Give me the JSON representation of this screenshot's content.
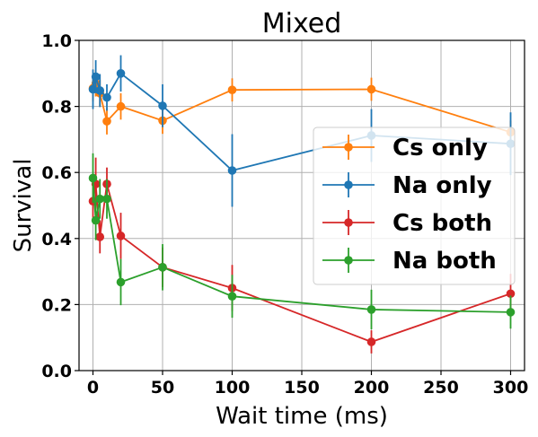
{
  "chart_data": {
    "type": "line",
    "title": "Mixed",
    "xlabel": "Wait time (ms)",
    "ylabel": "Survival",
    "xlim": [
      -10,
      310
    ],
    "ylim": [
      0.0,
      1.0
    ],
    "xticks": [
      0,
      50,
      100,
      150,
      200,
      250,
      300
    ],
    "xtick_labels": [
      "0",
      "50",
      "100",
      "150",
      "200",
      "250",
      "300"
    ],
    "yticks": [
      0.0,
      0.2,
      0.4,
      0.6,
      0.8,
      1.0
    ],
    "ytick_labels": [
      "0.0",
      "0.2",
      "0.4",
      "0.6",
      "0.8",
      "1.0"
    ],
    "grid": true,
    "legend_position": "right",
    "series": [
      {
        "name": "Cs only",
        "color": "#ff7f0e",
        "x": [
          0,
          2,
          5,
          10,
          20,
          50,
          100,
          200,
          300
        ],
        "y": [
          0.855,
          0.87,
          0.84,
          0.755,
          0.8,
          0.757,
          0.85,
          0.852,
          0.722
        ],
        "err": [
          0.04,
          0.04,
          0.04,
          0.04,
          0.04,
          0.04,
          0.035,
          0.035,
          0.035
        ]
      },
      {
        "name": "Na only",
        "color": "#1f77b4",
        "x": [
          0,
          2,
          5,
          10,
          20,
          50,
          100,
          200,
          300
        ],
        "y": [
          0.852,
          0.89,
          0.848,
          0.827,
          0.9,
          0.802,
          0.606,
          0.712,
          0.687
        ],
        "err": [
          0.06,
          0.05,
          0.05,
          0.04,
          0.055,
          0.065,
          0.11,
          0.08,
          0.095
        ]
      },
      {
        "name": "Cs both",
        "color": "#d62728",
        "x": [
          0,
          2,
          5,
          10,
          20,
          50,
          100,
          200,
          300
        ],
        "y": [
          0.513,
          0.565,
          0.405,
          0.565,
          0.408,
          0.313,
          0.25,
          0.087,
          0.233
        ],
        "err": [
          0.05,
          0.08,
          0.05,
          0.05,
          0.07,
          0.06,
          0.07,
          0.035,
          0.06
        ]
      },
      {
        "name": "Na both",
        "color": "#2ca02c",
        "x": [
          0,
          2,
          5,
          10,
          20,
          50,
          100,
          200,
          300
        ],
        "y": [
          0.583,
          0.455,
          0.52,
          0.52,
          0.268,
          0.313,
          0.225,
          0.185,
          0.177
        ],
        "err": [
          0.075,
          0.06,
          0.06,
          0.06,
          0.07,
          0.07,
          0.065,
          0.06,
          0.05
        ]
      }
    ]
  }
}
